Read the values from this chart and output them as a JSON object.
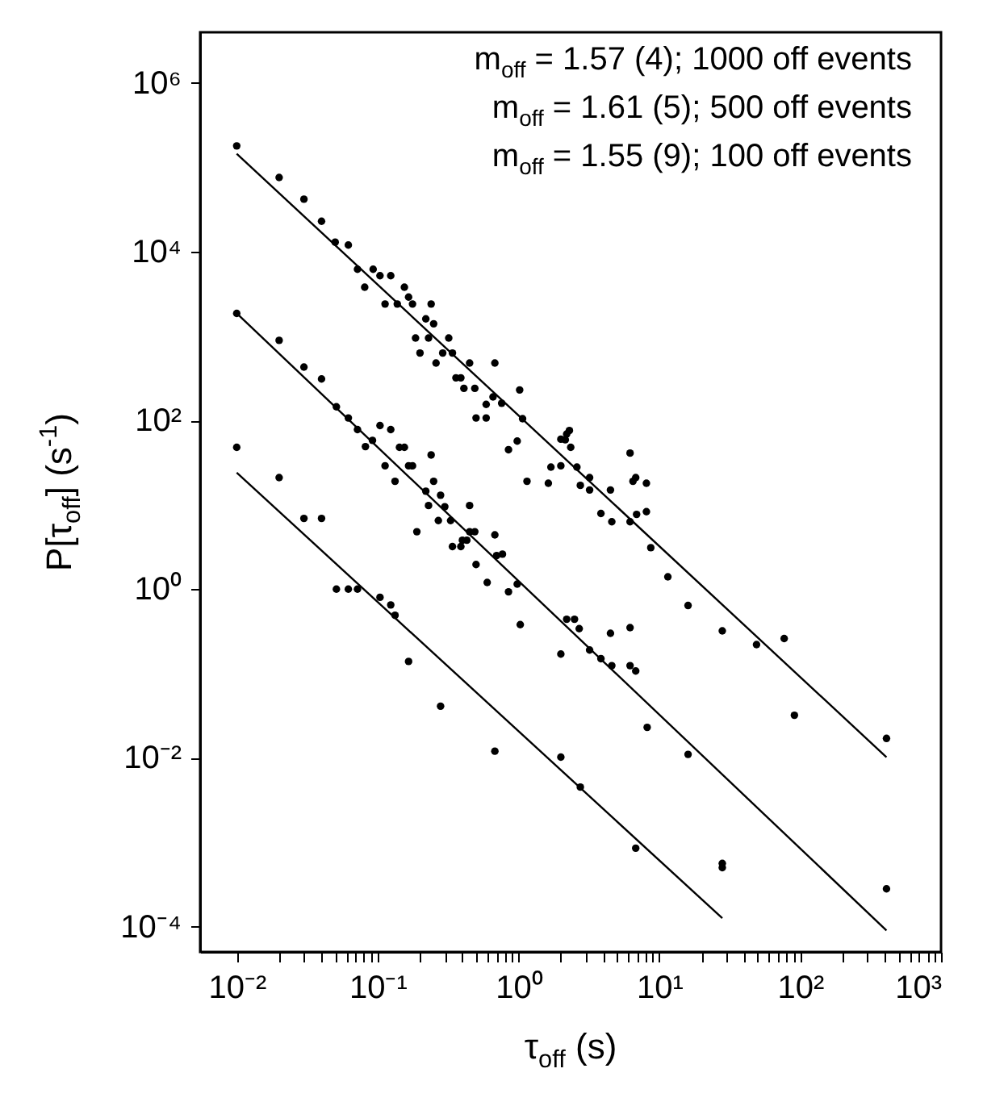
{
  "chart_data": {
    "type": "scatter",
    "xlabel": "τ$_{off}$ (s)",
    "ylabel": "P[τ$_{off}$] (s$^{-1}$)",
    "annotations": [
      "m$_{off}$ = 1.57 (4); 1000 off events",
      "m$_{off}$ = 1.61 (5); 500 off events",
      "m$_{off}$ = 1.55 (9); 100 off events"
    ],
    "log": "xy",
    "xlim": [
      0.0055,
      1000
    ],
    "ylim": [
      5e-05,
      4000000
    ],
    "xticks": [
      {
        "value": 0.01,
        "label": "10⁻²"
      },
      {
        "value": 0.02,
        "label": null
      },
      {
        "value": 0.03,
        "label": null
      },
      {
        "value": 0.04,
        "label": null
      },
      {
        "value": 0.05,
        "label": null
      },
      {
        "value": 0.06,
        "label": null
      },
      {
        "value": 0.07,
        "label": null
      },
      {
        "value": 0.08,
        "label": null
      },
      {
        "value": 0.09,
        "label": null
      },
      {
        "value": 0.1,
        "label": "10⁻¹"
      },
      {
        "value": 0.2,
        "label": null
      },
      {
        "value": 0.3,
        "label": null
      },
      {
        "value": 0.4,
        "label": null
      },
      {
        "value": 0.5,
        "label": null
      },
      {
        "value": 0.6,
        "label": null
      },
      {
        "value": 0.7,
        "label": null
      },
      {
        "value": 0.8,
        "label": null
      },
      {
        "value": 0.9,
        "label": null
      },
      {
        "value": 1,
        "label": "10⁰"
      },
      {
        "value": 2,
        "label": null
      },
      {
        "value": 3,
        "label": null
      },
      {
        "value": 4,
        "label": null
      },
      {
        "value": 5,
        "label": null
      },
      {
        "value": 6,
        "label": null
      },
      {
        "value": 7,
        "label": null
      },
      {
        "value": 8,
        "label": null
      },
      {
        "value": 9,
        "label": null
      },
      {
        "value": 10,
        "label": "10¹"
      },
      {
        "value": 20,
        "label": null
      },
      {
        "value": 30,
        "label": null
      },
      {
        "value": 40,
        "label": null
      },
      {
        "value": 50,
        "label": null
      },
      {
        "value": 60,
        "label": null
      },
      {
        "value": 70,
        "label": null
      },
      {
        "value": 80,
        "label": null
      },
      {
        "value": 90,
        "label": null
      },
      {
        "value": 100,
        "label": "10²"
      },
      {
        "value": 200,
        "label": null
      },
      {
        "value": 300,
        "label": null
      },
      {
        "value": 400,
        "label": null
      },
      {
        "value": 500,
        "label": null
      },
      {
        "value": 600,
        "label": null
      },
      {
        "value": 700,
        "label": null
      },
      {
        "value": 800,
        "label": null
      },
      {
        "value": 900,
        "label": null
      },
      {
        "value": 1000,
        "label": "10³"
      }
    ],
    "yticks": [
      {
        "value": 0.0001,
        "label": "10⁻⁴"
      },
      {
        "value": 0.01,
        "label": "10⁻²"
      },
      {
        "value": 1,
        "label": "10⁰"
      },
      {
        "value": 100,
        "label": "10²"
      },
      {
        "value": 10000,
        "label": "10⁴"
      },
      {
        "value": 1000000,
        "label": "10⁶"
      }
    ],
    "series": [
      {
        "marker": "circle",
        "color": "#000000",
        "x": [
          0.01,
          0.02,
          0.03,
          0.04,
          0.05,
          0.062,
          0.072,
          0.081,
          0.093,
          0.104,
          0.124,
          0.113,
          0.138,
          0.155,
          0.166,
          0.177,
          0.24,
          0.22,
          0.25,
          0.186,
          0.2,
          0.23,
          0.26,
          0.29,
          0.32,
          0.34,
          0.36,
          0.39,
          0.41,
          0.45,
          0.49,
          0.5,
          0.59,
          0.59,
          0.68,
          0.66,
          0.76,
          1.02,
          1.07,
          0.85,
          0.98,
          2.0,
          1.15,
          1.63,
          1.7,
          2.0,
          2.15,
          2.2,
          2.3,
          2.35,
          2.6,
          2.75,
          3.2,
          3.2,
          4.5,
          3.85,
          4.6,
          6.2,
          6.5,
          6.8,
          8.1,
          6.2,
          6.9,
          8.1,
          8.7,
          11.5,
          16,
          28,
          49,
          77,
          91,
          410
        ],
        "values": [
          180000,
          76000,
          42000,
          23000,
          13000,
          12000,
          6200,
          3800,
          6200,
          5200,
          5200,
          2400,
          2400,
          3800,
          2900,
          2400,
          2400,
          1600,
          1400,
          950,
          630,
          950,
          480,
          630,
          950,
          630,
          320,
          320,
          240,
          480,
          240,
          107,
          107,
          155,
          480,
          190,
          160,
          230,
          105,
          45,
          57,
          60,
          19,
          18,
          28,
          29,
          59,
          69,
          76,
          48,
          28,
          17,
          21,
          15,
          15,
          7.9,
          6.3,
          41,
          19,
          21,
          18,
          6.3,
          7.7,
          8.3,
          3.1,
          1.4,
          0.64,
          0.32,
          0.22,
          0.26,
          0.032,
          0.017
        ]
      },
      {
        "marker": "circle",
        "color": "#000000",
        "x": [
          0.01,
          0.02,
          0.03,
          0.04,
          0.051,
          0.062,
          0.072,
          0.082,
          0.092,
          0.104,
          0.124,
          0.113,
          0.143,
          0.155,
          0.133,
          0.166,
          0.177,
          0.24,
          0.25,
          0.19,
          0.22,
          0.23,
          0.27,
          0.28,
          0.3,
          0.33,
          0.34,
          0.39,
          0.4,
          0.43,
          0.45,
          0.49,
          0.45,
          0.5,
          0.6,
          0.68,
          0.7,
          0.77,
          0.85,
          0.98,
          1.03,
          2.0,
          2.2,
          2.5,
          2.7,
          3.2,
          3.85,
          4.5,
          4.6,
          6.2,
          6.2,
          6.8,
          8.2,
          16,
          28,
          410
        ],
        "values": [
          1860,
          890,
          430,
          310,
          145,
          107,
          78,
          49,
          58,
          87,
          78,
          29,
          48,
          48,
          19,
          29,
          29,
          39,
          19,
          4.8,
          14.5,
          9.8,
          6.5,
          13,
          9.5,
          6.5,
          3.2,
          3.2,
          3.8,
          3.8,
          4.8,
          4.8,
          9.8,
          1.96,
          1.2,
          4.4,
          2.5,
          2.6,
          0.93,
          1.15,
          0.38,
          0.17,
          0.44,
          0.44,
          0.34,
          0.19,
          0.15,
          0.3,
          0.124,
          0.35,
          0.124,
          0.107,
          0.023,
          0.011,
          0.00056,
          0.00028
        ]
      },
      {
        "marker": "circle",
        "color": "#000000",
        "x": [
          0.01,
          0.02,
          0.03,
          0.04,
          0.051,
          0.062,
          0.072,
          0.104,
          0.124,
          0.133,
          0.166,
          0.28,
          0.68,
          2.0,
          2.75,
          6.8,
          28
        ],
        "values": [
          48,
          21,
          6.9,
          6.9,
          1.0,
          1.0,
          1.0,
          0.8,
          0.65,
          0.49,
          0.139,
          0.041,
          0.012,
          0.0102,
          0.0045,
          0.00085,
          0.0005
        ]
      },
      {
        "type": "line",
        "color": "#000000",
        "x": [
          0.01,
          410
        ],
        "values": [
          145000,
          0.0102
        ]
      },
      {
        "type": "line",
        "color": "#000000",
        "x": [
          0.01,
          410
        ],
        "values": [
          1860,
          9e-05
        ]
      },
      {
        "type": "line",
        "color": "#000000",
        "x": [
          0.01,
          28
        ],
        "values": [
          24,
          0.000126
        ]
      }
    ]
  }
}
